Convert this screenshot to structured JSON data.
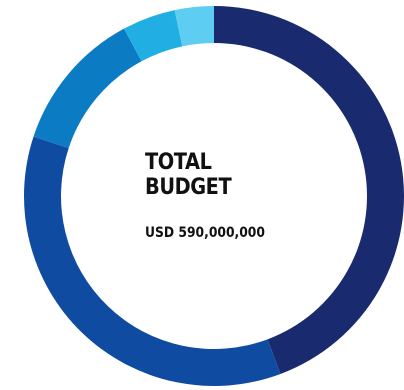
{
  "chart_data": {
    "type": "pie",
    "title": "TOTAL BUDGET",
    "title_lines": [
      "TOTAL",
      "BUDGET"
    ],
    "total_label": "USD 590,000,000",
    "donut": true,
    "slices": [
      {
        "value": 44.0,
        "color": "#1a2a6e"
      },
      {
        "value": 35.5,
        "color": "#0f4ba0"
      },
      {
        "value": 12.0,
        "color": "#0b7cc4"
      },
      {
        "value": 4.5,
        "color": "#21afe3"
      },
      {
        "value": 3.3,
        "color": "#5dcdf2"
      }
    ]
  }
}
